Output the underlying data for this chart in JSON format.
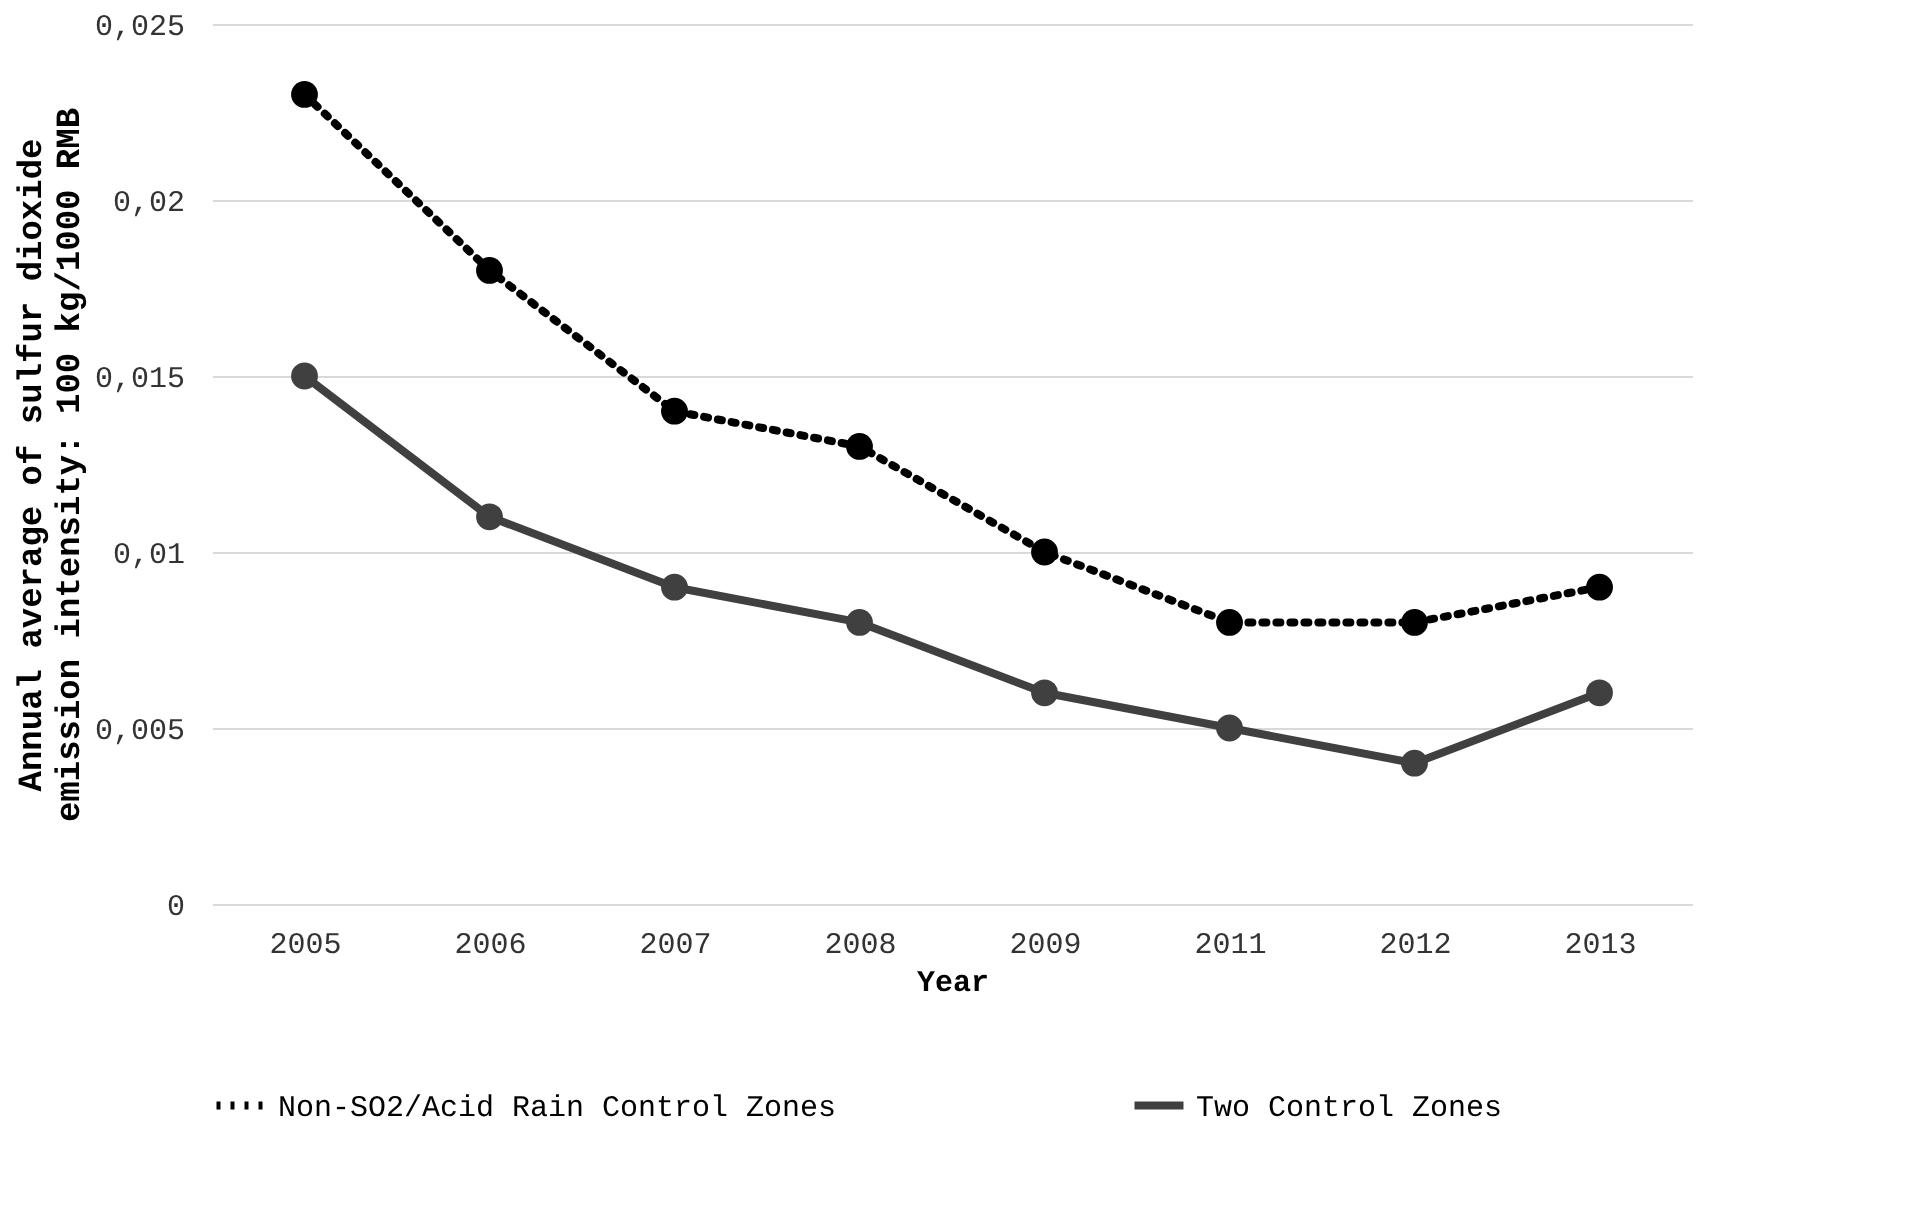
{
  "chart_data": {
    "type": "line",
    "xlabel": "Year",
    "ylabel": "Annual average of sulfur dioxide emission intensity: 100 kg/1000 RMB",
    "categories": [
      "2005",
      "2006",
      "2007",
      "2008",
      "2009",
      "2011",
      "2012",
      "2013"
    ],
    "series": [
      {
        "name": "Non-SO2/Acid Rain Control Zones",
        "color": "#000000",
        "line_style": "dotted",
        "values": [
          0.023,
          0.018,
          0.014,
          0.013,
          0.01,
          0.008,
          0.008,
          0.009
        ]
      },
      {
        "name": "Two Control Zones",
        "color": "#404040",
        "line_style": "solid",
        "values": [
          0.015,
          0.011,
          0.009,
          0.008,
          0.006,
          0.005,
          0.004,
          0.006
        ]
      }
    ],
    "ylim": [
      0,
      0.025
    ],
    "yticks": [
      0,
      {
        "value": 0.005,
        "label": "0,005"
      },
      {
        "value": 0.01,
        "label": "0,01"
      },
      {
        "value": 0.015,
        "label": "0,015"
      },
      {
        "value": 0.02,
        "label": "0,02"
      },
      {
        "value": 0.025,
        "label": "0,025"
      }
    ],
    "grid": "y",
    "legend": "bottom",
    "marker": "circle"
  }
}
